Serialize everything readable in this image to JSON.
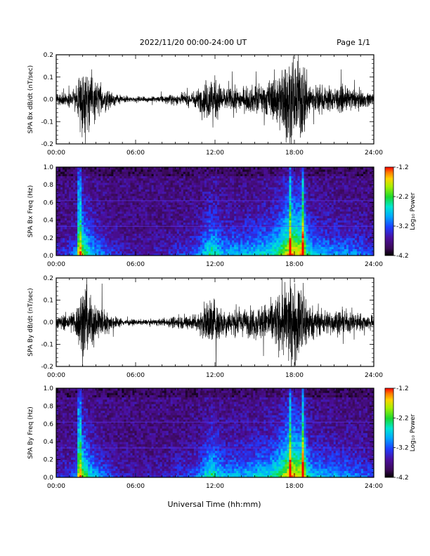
{
  "header": {
    "title": "2022/11/20  00:00-24:00 UT",
    "page": "Page 1/1"
  },
  "xlabel": "Universal Time (hh:mm)",
  "colorbar": {
    "label": "Log₁₀ Power",
    "ticks": [
      "-1.2",
      "-2.2",
      "-3.2",
      "-4.2"
    ],
    "range": [
      -4.2,
      -1.2
    ],
    "colormap": "rainbow: black-purple-blue-cyan-green-yellow-red"
  },
  "chart_data": [
    {
      "type": "line",
      "ylabel": "SPA Bx dB/dt (nT/sec)",
      "xlim": [
        0,
        24
      ],
      "ylim": [
        -0.2,
        0.2
      ],
      "x_ticks": [
        "00:00",
        "06:00",
        "12:00",
        "18:00",
        "24:00"
      ],
      "y_ticks": [
        "0.2",
        "0.1",
        "0.0",
        "-0.1",
        "-0.2"
      ],
      "line_color": "#000000",
      "envelope_hours": [
        0,
        1,
        1.6,
        2.0,
        2.5,
        3.2,
        4.0,
        5.0,
        6.0,
        7.0,
        8.0,
        9.0,
        10.0,
        10.8,
        11.2,
        11.7,
        12.0,
        12.5,
        13.0,
        13.5,
        14.0,
        15.0,
        16.0,
        16.8,
        17.3,
        17.8,
        18.3,
        18.7,
        19.0,
        19.5,
        20.5,
        21.5,
        22.5,
        23.5,
        24.0
      ],
      "envelope_amplitude": [
        0.03,
        0.04,
        0.08,
        0.22,
        0.15,
        0.09,
        0.05,
        0.02,
        0.015,
        0.015,
        0.018,
        0.03,
        0.035,
        0.06,
        0.1,
        0.14,
        0.12,
        0.08,
        0.06,
        0.07,
        0.06,
        0.08,
        0.1,
        0.15,
        0.22,
        0.24,
        0.22,
        0.24,
        0.12,
        0.08,
        0.07,
        0.07,
        0.06,
        0.04,
        0.04
      ]
    },
    {
      "type": "heatmap",
      "ylabel": "SPA Bx Freq (Hz)",
      "xlim": [
        0,
        24
      ],
      "ylim": [
        0.0,
        1.0
      ],
      "x_ticks": [
        "00:00",
        "06:00",
        "12:00",
        "18:00",
        "24:00"
      ],
      "y_ticks": [
        "1.0",
        "0.8",
        "0.6",
        "0.4",
        "0.2",
        "0.0"
      ],
      "colorbar_ticks": [
        "-1.2",
        "-2.2",
        "-3.2",
        "-4.2"
      ],
      "horizontal_lines_hz": [
        0.33,
        0.62
      ],
      "activity_hours": [
        0,
        1,
        1.6,
        2.0,
        2.5,
        3.2,
        4.0,
        5.0,
        6.0,
        7.0,
        8.0,
        9.0,
        10.0,
        10.8,
        11.2,
        11.7,
        12.0,
        12.5,
        13.0,
        13.5,
        14.0,
        15.0,
        16.0,
        16.8,
        17.3,
        17.8,
        18.3,
        18.7,
        19.0,
        19.5,
        20.5,
        21.5,
        22.5,
        23.5,
        24.0
      ],
      "activity_level": [
        0.15,
        0.2,
        0.35,
        0.75,
        0.5,
        0.35,
        0.22,
        0.12,
        0.1,
        0.1,
        0.12,
        0.18,
        0.22,
        0.32,
        0.45,
        0.6,
        0.55,
        0.42,
        0.38,
        0.42,
        0.4,
        0.45,
        0.5,
        0.62,
        0.8,
        0.95,
        0.85,
        0.95,
        0.55,
        0.42,
        0.38,
        0.36,
        0.33,
        0.25,
        0.2
      ],
      "vertical_streaks_hours": [
        1.8,
        17.7,
        18.6
      ]
    },
    {
      "type": "line",
      "ylabel": "SPA By dB/dt (nT/sec)",
      "xlim": [
        0,
        24
      ],
      "ylim": [
        -0.2,
        0.2
      ],
      "x_ticks": [
        "00:00",
        "06:00",
        "12:00",
        "18:00",
        "24:00"
      ],
      "y_ticks": [
        "0.2",
        "0.1",
        "0.0",
        "-0.1",
        "-0.2"
      ],
      "line_color": "#000000",
      "envelope_hours": [
        0,
        1,
        1.6,
        2.0,
        2.5,
        3.2,
        4.0,
        5.0,
        6.0,
        7.0,
        8.0,
        9.0,
        10.0,
        10.8,
        11.2,
        11.7,
        12.0,
        12.5,
        13.0,
        13.5,
        14.0,
        15.0,
        16.0,
        16.8,
        17.3,
        17.8,
        18.3,
        18.7,
        19.0,
        19.5,
        20.5,
        21.5,
        22.5,
        23.5,
        24.0
      ],
      "envelope_amplitude": [
        0.035,
        0.05,
        0.1,
        0.24,
        0.16,
        0.1,
        0.05,
        0.02,
        0.015,
        0.015,
        0.02,
        0.035,
        0.04,
        0.06,
        0.1,
        0.15,
        0.13,
        0.09,
        0.07,
        0.08,
        0.07,
        0.09,
        0.11,
        0.16,
        0.22,
        0.24,
        0.22,
        0.24,
        0.12,
        0.08,
        0.07,
        0.07,
        0.06,
        0.04,
        0.04
      ]
    },
    {
      "type": "heatmap",
      "ylabel": "SPA By Freq (Hz)",
      "xlim": [
        0,
        24
      ],
      "ylim": [
        0.0,
        1.0
      ],
      "x_ticks": [
        "00:00",
        "06:00",
        "12:00",
        "18:00",
        "24:00"
      ],
      "y_ticks": [
        "1.0",
        "0.8",
        "0.6",
        "0.4",
        "0.2",
        "0.0"
      ],
      "colorbar_ticks": [
        "-1.2",
        "-2.2",
        "-3.2",
        "-4.2"
      ],
      "horizontal_lines_hz": [
        0.33,
        0.62
      ],
      "activity_hours": [
        0,
        1,
        1.6,
        2.0,
        2.5,
        3.2,
        4.0,
        5.0,
        6.0,
        7.0,
        8.0,
        9.0,
        10.0,
        10.8,
        11.2,
        11.7,
        12.0,
        12.5,
        13.0,
        13.5,
        14.0,
        15.0,
        16.0,
        16.8,
        17.3,
        17.8,
        18.3,
        18.7,
        19.0,
        19.5,
        20.5,
        21.5,
        22.5,
        23.5,
        24.0
      ],
      "activity_level": [
        0.15,
        0.2,
        0.35,
        0.75,
        0.5,
        0.35,
        0.22,
        0.12,
        0.1,
        0.1,
        0.12,
        0.18,
        0.22,
        0.32,
        0.45,
        0.6,
        0.55,
        0.42,
        0.38,
        0.42,
        0.4,
        0.45,
        0.5,
        0.62,
        0.8,
        0.95,
        0.85,
        0.95,
        0.55,
        0.42,
        0.38,
        0.36,
        0.33,
        0.25,
        0.2
      ],
      "vertical_streaks_hours": [
        1.8,
        17.7,
        18.6
      ]
    }
  ]
}
